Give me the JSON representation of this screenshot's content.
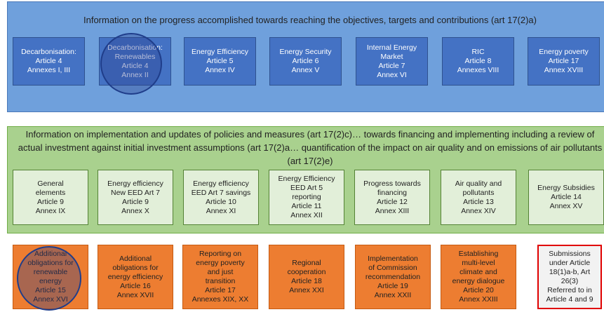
{
  "sections": [
    {
      "title": "Information on the progress accomplished towards reaching the objectives, targets and contributions (art 17(2)a)",
      "boxes": [
        {
          "lines": [
            "Decarbonisation:",
            "Article 4",
            "Annexes I, III"
          ]
        },
        {
          "lines": [
            "Decarbonisation:",
            "Renewables",
            "Article 4",
            "Annex II"
          ]
        },
        {
          "lines": [
            "Energy Efficiency",
            "Article 5",
            "Annex IV"
          ]
        },
        {
          "lines": [
            "Energy Security",
            "Article 6",
            "Annex V"
          ]
        },
        {
          "lines": [
            "Internal Energy",
            "Market",
            "Article 7",
            "Annex VI"
          ]
        },
        {
          "lines": [
            "RIC",
            "Article 8",
            "Annexes VIII"
          ]
        },
        {
          "lines": [
            "Energy poverty",
            "Article 17",
            "Annex XVIII"
          ]
        }
      ]
    },
    {
      "title": "Information on implementation and updates of policies and measures (art 17(2)c)… towards financing and implementing including a review of actual investment against initial investment assumptions (art 17(2)a… quantification of the impact on air quality and on emissions of air pollutants (art 17(2)e)",
      "boxes": [
        {
          "lines": [
            "General",
            "elements",
            "Article 9",
            "Annex IX"
          ]
        },
        {
          "lines": [
            "Energy efficiency",
            "New EED Art 7",
            "Article 9",
            "Annex X"
          ]
        },
        {
          "lines": [
            "Energy efficiency",
            "EED Art 7 savings",
            "Article 10",
            "Annex XI"
          ]
        },
        {
          "lines": [
            "Energy Efficiency",
            "EED Art 5",
            "reporting",
            "Article 11",
            "Annex XII"
          ]
        },
        {
          "lines": [
            "Progress towards",
            "financing",
            "Article 12",
            "Annex XIII"
          ]
        },
        {
          "lines": [
            "Air quality and",
            "pollutants",
            "Article 13",
            "Annex XIV"
          ]
        },
        {
          "lines": [
            "Energy Subsidies",
            "Article 14",
            "Annex XV"
          ]
        }
      ]
    },
    {
      "boxes": [
        {
          "lines": [
            "Additional",
            "obligations for",
            "renewable",
            "energy",
            "Article 15",
            "Annex XVI"
          ]
        },
        {
          "lines": [
            "Additional",
            "obligations for",
            "energy efficiency",
            "Article 16",
            "Annex XVII"
          ]
        },
        {
          "lines": [
            "Reporting on",
            "energy poverty",
            "and just",
            "transition",
            "Article 17",
            "Annexes XIX, XX"
          ]
        },
        {
          "lines": [
            "Regional",
            "cooperation",
            "Article 18",
            "Annex XXI"
          ]
        },
        {
          "lines": [
            "Implementation",
            "of Commission",
            "recommendation",
            "Article 19",
            "Annex XXII"
          ]
        },
        {
          "lines": [
            "Establishing",
            "multi-level",
            "climate and",
            "energy dialogue",
            "Article 20",
            "Annex XXIII"
          ]
        },
        {
          "lines": [
            "Submissions",
            "under Article",
            "18(1)a-b, Art",
            "26(3)",
            "Referred to in",
            "Article 4 and 9"
          ]
        }
      ]
    }
  ]
}
